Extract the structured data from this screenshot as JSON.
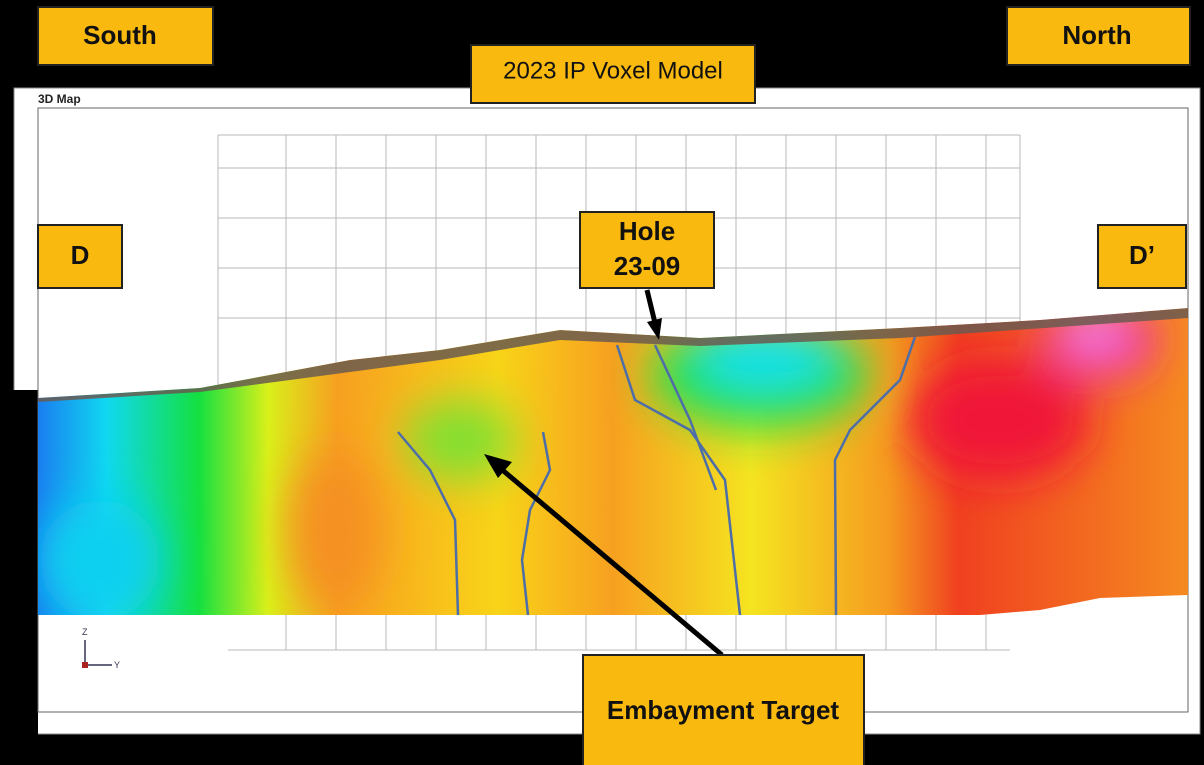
{
  "header": {
    "left": "South",
    "right": "North",
    "title": "2023 IP Voxel Model"
  },
  "panel": {
    "title": "3D Map",
    "axis_z": "Z",
    "axis_y": "Y"
  },
  "section": {
    "start": "D",
    "end": "D’"
  },
  "callouts": {
    "hole": [
      "Hole",
      "23-09"
    ],
    "target": "Embayment Target"
  }
}
